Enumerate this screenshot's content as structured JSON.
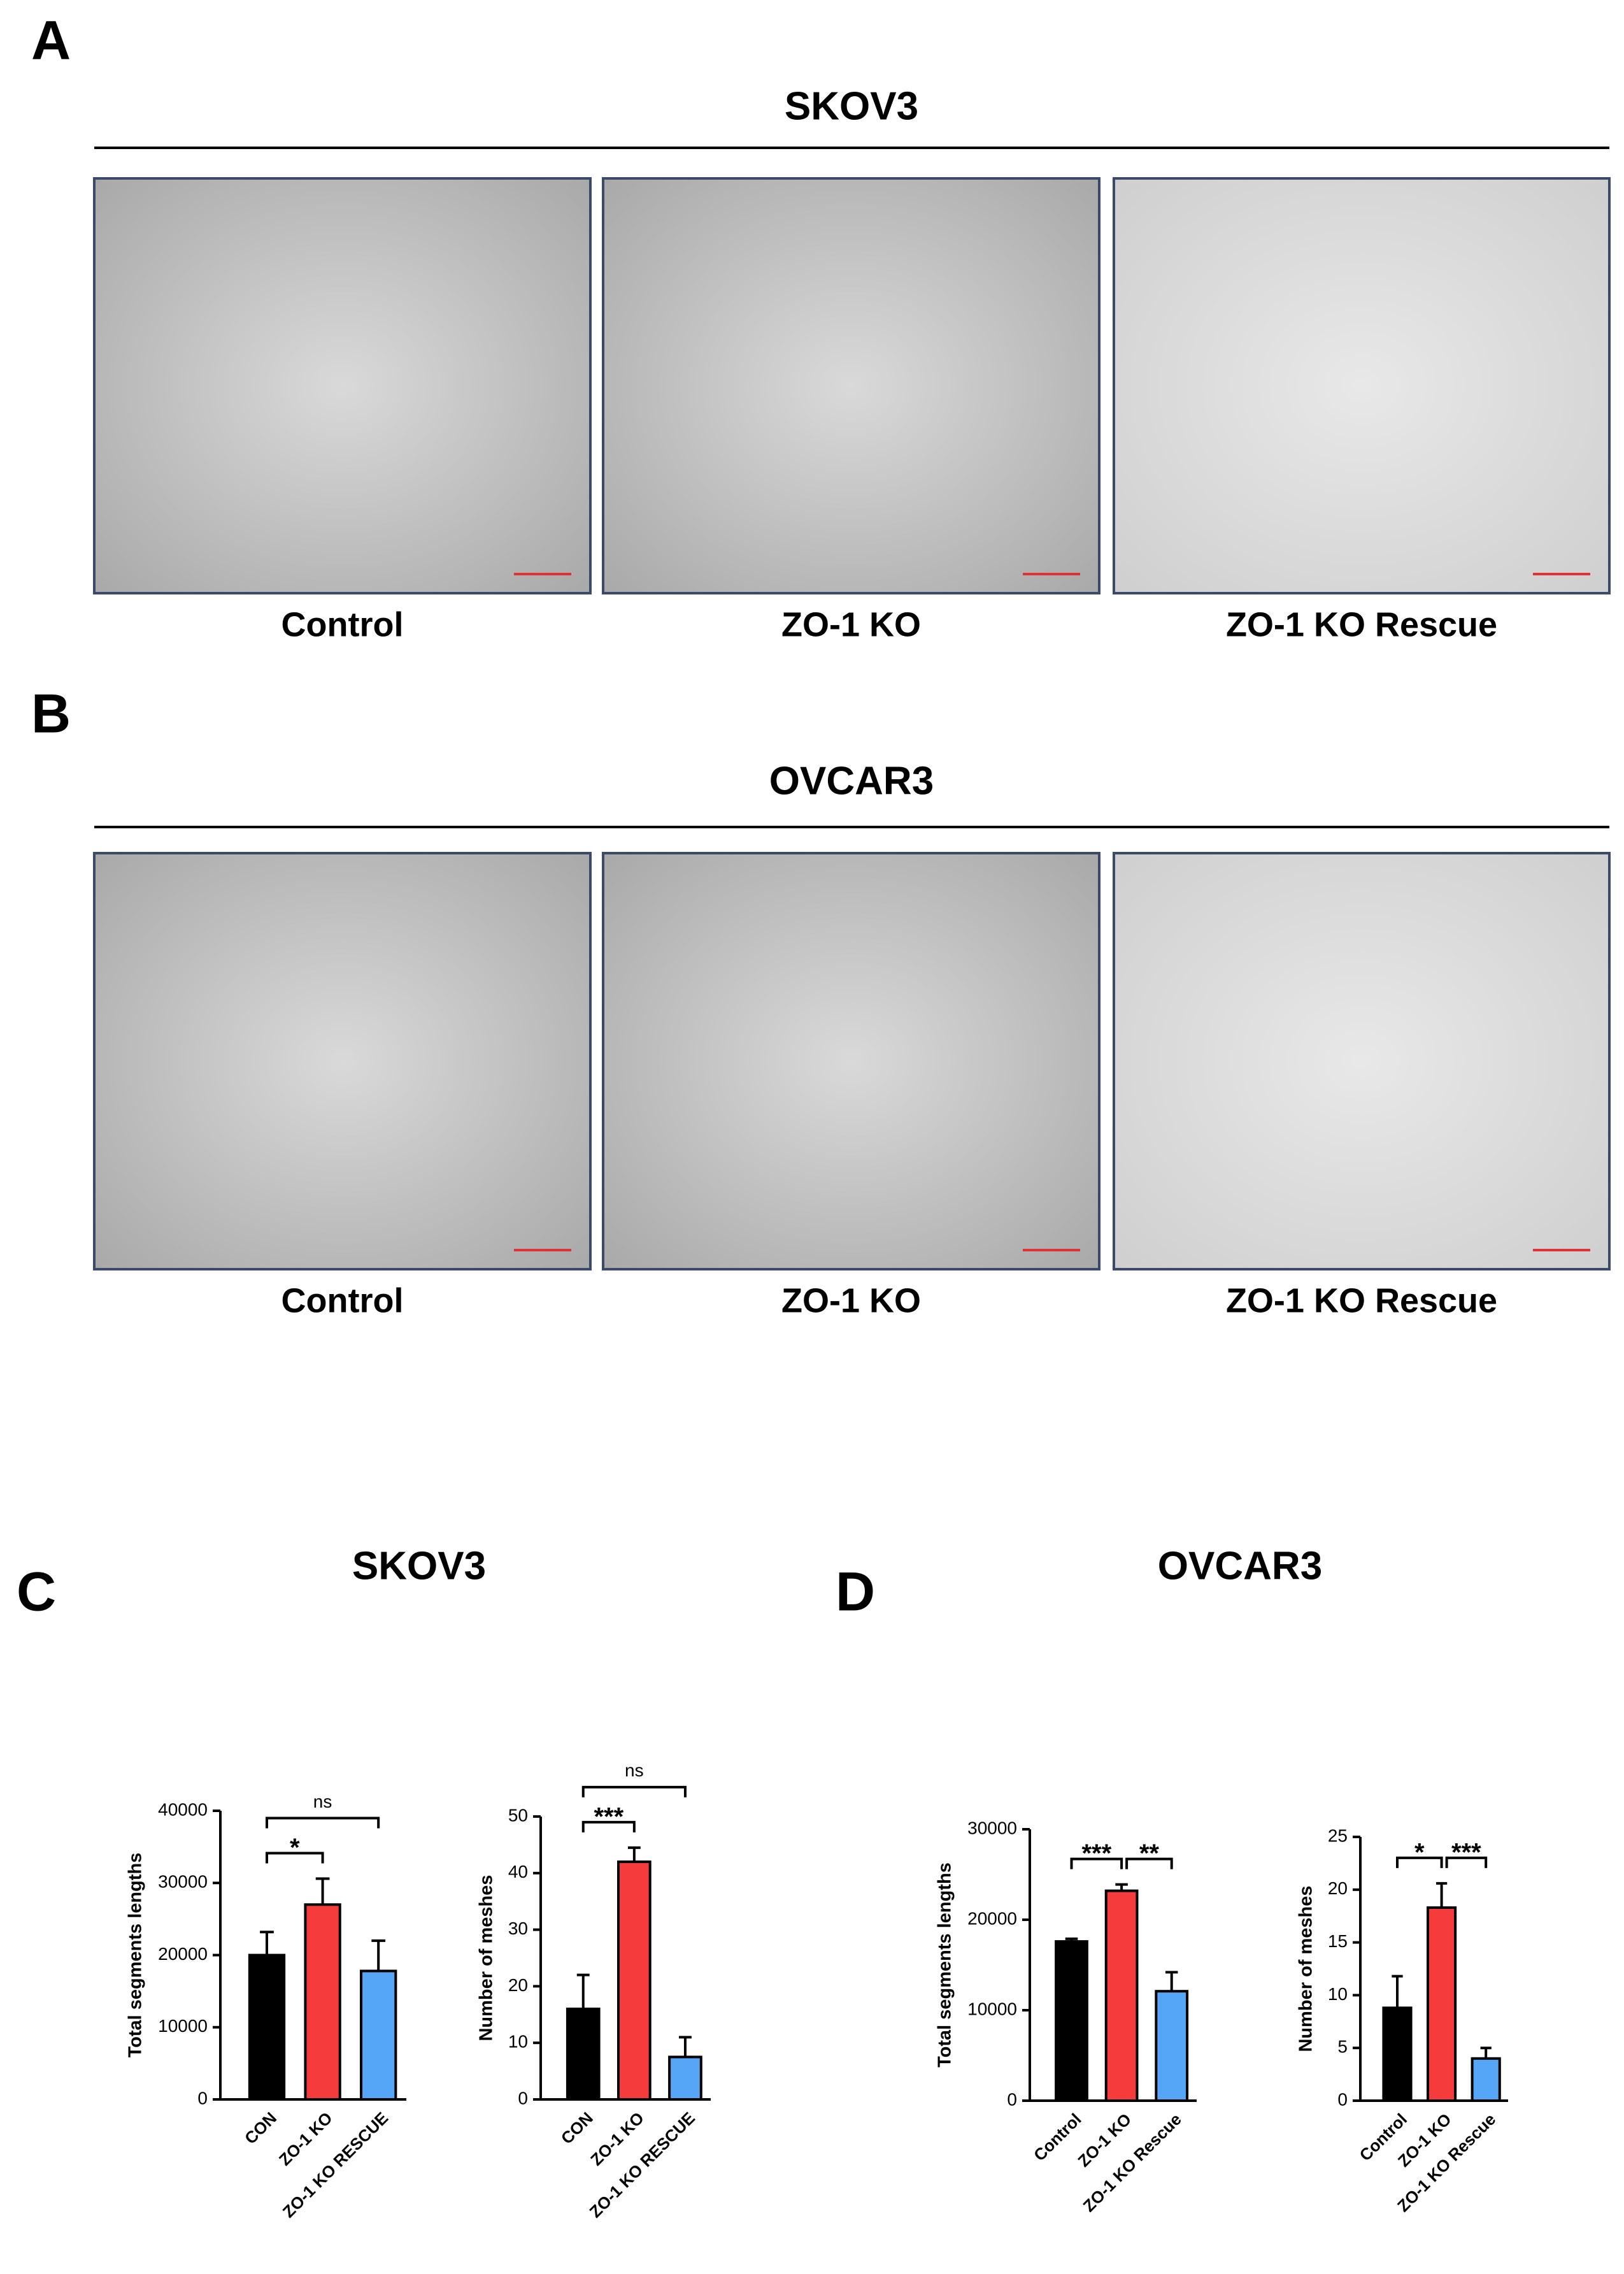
{
  "panels": [
    {
      "letter": "A",
      "title": "SKOV3",
      "labels": [
        "Control",
        "ZO-1 KO",
        "ZO-1 KO Rescue"
      ]
    },
    {
      "letter": "B",
      "title": "OVCAR3",
      "labels": [
        "Control",
        "ZO-1 KO",
        "ZO-1 KO Rescue"
      ]
    },
    {
      "letter": "C",
      "title": "SKOV3"
    },
    {
      "letter": "D",
      "title": "OVCAR3"
    }
  ],
  "chart_data": [
    {
      "type": "bar",
      "ylabel": "Total segments lengths",
      "categories": [
        "CON",
        "ZO-1 KO",
        "ZO-1 KO RESCUE"
      ],
      "values": [
        20000,
        27000,
        17800
      ],
      "errors": [
        3200,
        3600,
        4200
      ],
      "colors": [
        "#000000",
        "#f53b3b",
        "#55a6f7"
      ],
      "ylim": [
        0,
        40000
      ],
      "yticks": [
        0,
        10000,
        20000,
        30000,
        40000
      ],
      "significance": [
        {
          "from": 0,
          "to": 1,
          "label": "*"
        },
        {
          "from": 0,
          "to": 2,
          "label": "ns"
        }
      ]
    },
    {
      "type": "bar",
      "ylabel": "Number of meshes",
      "categories": [
        "CON",
        "ZO-1 KO",
        "ZO-1 KO RESCUE"
      ],
      "values": [
        16,
        42,
        7.5
      ],
      "errors": [
        6,
        2.5,
        3.5
      ],
      "colors": [
        "#000000",
        "#f53b3b",
        "#55a6f7"
      ],
      "ylim": [
        0,
        50
      ],
      "yticks": [
        0,
        10,
        20,
        30,
        40,
        50
      ],
      "significance": [
        {
          "from": 0,
          "to": 1,
          "label": "***"
        },
        {
          "from": 0,
          "to": 2,
          "label": "ns"
        }
      ]
    },
    {
      "type": "bar",
      "ylabel": "Total segments lengths",
      "categories": [
        "Control",
        "ZO-1 KO",
        "ZO-1 KO Rescue"
      ],
      "values": [
        17600,
        23200,
        12100
      ],
      "errors": [
        300,
        700,
        2100
      ],
      "colors": [
        "#000000",
        "#f53b3b",
        "#55a6f7"
      ],
      "ylim": [
        0,
        30000
      ],
      "yticks": [
        0,
        10000,
        20000,
        30000
      ],
      "significance": [
        {
          "from": 0,
          "to": 1,
          "label": "***"
        },
        {
          "from": 1,
          "to": 2,
          "label": "**"
        }
      ]
    },
    {
      "type": "bar",
      "ylabel": "Number of meshes",
      "categories": [
        "Control",
        "ZO-1 KO",
        "ZO-1 KO Rescue"
      ],
      "values": [
        8.8,
        18.3,
        4
      ],
      "errors": [
        3,
        2.3,
        1
      ],
      "colors": [
        "#000000",
        "#f53b3b",
        "#55a6f7"
      ],
      "ylim": [
        0,
        25
      ],
      "yticks": [
        0,
        5,
        10,
        15,
        20,
        25
      ],
      "significance": [
        {
          "from": 0,
          "to": 1,
          "label": "*"
        },
        {
          "from": 1,
          "to": 2,
          "label": "***"
        }
      ]
    }
  ]
}
